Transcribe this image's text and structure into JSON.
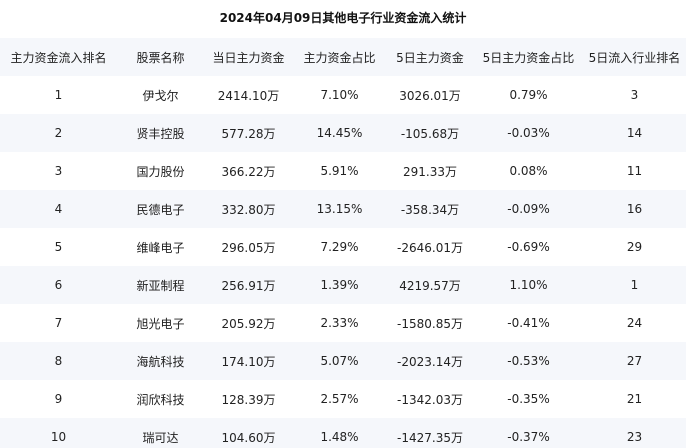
{
  "title": "2024年04月09日其他电子行业资金流入统计",
  "table": {
    "headers": [
      "主力资金流入排名",
      "股票名称",
      "当日主力资金",
      "主力资金占比",
      "5日主力资金",
      "5日主力资金占比",
      "5日流入行业排名"
    ],
    "rows": [
      [
        "1",
        "伊戈尔",
        "2414.10万",
        "7.10%",
        "3026.01万",
        "0.79%",
        "3"
      ],
      [
        "2",
        "贤丰控股",
        "577.28万",
        "14.45%",
        "-105.68万",
        "-0.03%",
        "14"
      ],
      [
        "3",
        "国力股份",
        "366.22万",
        "5.91%",
        "291.33万",
        "0.08%",
        "11"
      ],
      [
        "4",
        "民德电子",
        "332.80万",
        "13.15%",
        "-358.34万",
        "-0.09%",
        "16"
      ],
      [
        "5",
        "维峰电子",
        "296.05万",
        "7.29%",
        "-2646.01万",
        "-0.69%",
        "29"
      ],
      [
        "6",
        "新亚制程",
        "256.91万",
        "1.39%",
        "4219.57万",
        "1.10%",
        "1"
      ],
      [
        "7",
        "旭光电子",
        "205.92万",
        "2.33%",
        "-1580.85万",
        "-0.41%",
        "24"
      ],
      [
        "8",
        "海航科技",
        "174.10万",
        "5.07%",
        "-2023.14万",
        "-0.53%",
        "27"
      ],
      [
        "9",
        "润欣科技",
        "128.39万",
        "2.57%",
        "-1342.03万",
        "-0.35%",
        "21"
      ],
      [
        "10",
        "瑞可达",
        "104.60万",
        "1.48%",
        "-1427.35万",
        "-0.37%",
        "23"
      ]
    ]
  }
}
